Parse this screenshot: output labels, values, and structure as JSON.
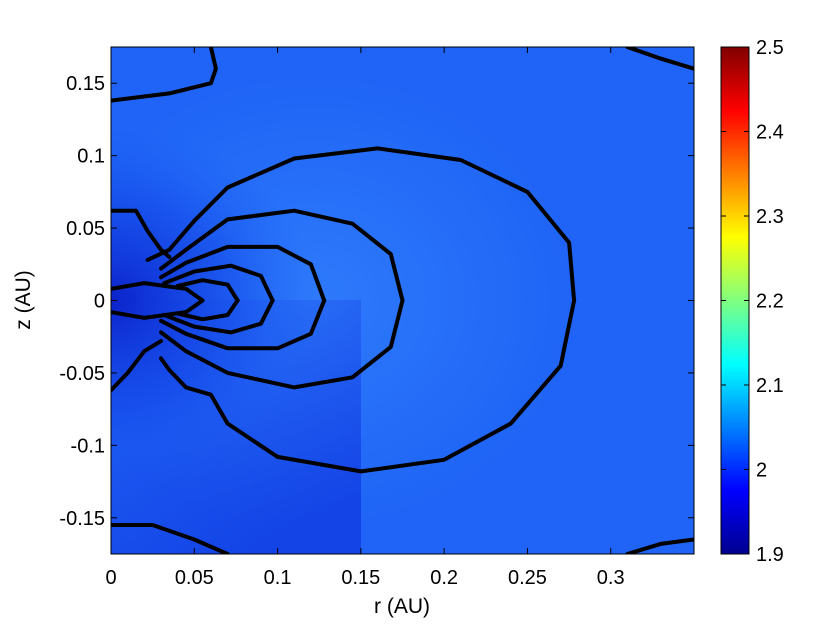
{
  "chart_data": {
    "type": "heatmap",
    "title": "",
    "xlabel": "r (AU)",
    "ylabel": "z (AU)",
    "xlim": [
      0,
      0.35
    ],
    "ylim": [
      -0.175,
      0.175
    ],
    "x_ticks": [
      {
        "value": 0,
        "label": "0"
      },
      {
        "value": 0.05,
        "label": "0.05"
      },
      {
        "value": 0.1,
        "label": "0.1"
      },
      {
        "value": 0.15,
        "label": "0.15"
      },
      {
        "value": 0.2,
        "label": "0.2"
      },
      {
        "value": 0.25,
        "label": "0.25"
      },
      {
        "value": 0.3,
        "label": "0.3"
      }
    ],
    "y_ticks": [
      {
        "value": 0.15,
        "label": "0.15"
      },
      {
        "value": 0.1,
        "label": "0.1"
      },
      {
        "value": 0.05,
        "label": "0.05"
      },
      {
        "value": 0,
        "label": "0"
      },
      {
        "value": -0.05,
        "label": "-0.05"
      },
      {
        "value": -0.1,
        "label": "-0.1"
      },
      {
        "value": -0.15,
        "label": "-0.15"
      }
    ],
    "colorbar": {
      "colormap": "jet",
      "range": [
        1.9,
        2.5
      ],
      "ticks": [
        {
          "value": 2.5,
          "label": "2.5"
        },
        {
          "value": 2.4,
          "label": "2.4"
        },
        {
          "value": 2.3,
          "label": "2.3"
        },
        {
          "value": 2.2,
          "label": "2.2"
        },
        {
          "value": 2.1,
          "label": "2.1"
        },
        {
          "value": 2.0,
          "label": "2"
        },
        {
          "value": 1.9,
          "label": "1.9"
        }
      ]
    },
    "field_background_value": 2.0,
    "contours": [
      {
        "points": [
          [
            0.175,
            0.0
          ],
          [
            0.168,
            0.032
          ],
          [
            0.145,
            0.053
          ],
          [
            0.11,
            0.062
          ],
          [
            0.07,
            0.056
          ],
          [
            0.045,
            0.035
          ],
          [
            0.03,
            0.022
          ]
        ]
      },
      {
        "points": [
          [
            0.175,
            0.0
          ],
          [
            0.168,
            -0.032
          ],
          [
            0.145,
            -0.053
          ],
          [
            0.11,
            -0.06
          ],
          [
            0.07,
            -0.05
          ],
          [
            0.045,
            -0.035
          ],
          [
            0.03,
            -0.022
          ]
        ]
      },
      {
        "points": [
          [
            0.128,
            0.0
          ],
          [
            0.12,
            0.025
          ],
          [
            0.1,
            0.037
          ],
          [
            0.07,
            0.037
          ],
          [
            0.045,
            0.026
          ],
          [
            0.03,
            0.016
          ]
        ]
      },
      {
        "points": [
          [
            0.128,
            0.0
          ],
          [
            0.12,
            -0.023
          ],
          [
            0.1,
            -0.033
          ],
          [
            0.07,
            -0.033
          ],
          [
            0.045,
            -0.023
          ],
          [
            0.03,
            -0.014
          ]
        ]
      },
      {
        "points": [
          [
            0.097,
            0.0
          ],
          [
            0.09,
            0.017
          ],
          [
            0.072,
            0.024
          ],
          [
            0.05,
            0.02
          ],
          [
            0.032,
            0.012
          ]
        ]
      },
      {
        "points": [
          [
            0.097,
            0.0
          ],
          [
            0.09,
            -0.016
          ],
          [
            0.072,
            -0.022
          ],
          [
            0.05,
            -0.018
          ],
          [
            0.032,
            -0.01
          ]
        ]
      },
      {
        "points": [
          [
            0.076,
            0.0
          ],
          [
            0.07,
            0.011
          ],
          [
            0.055,
            0.014
          ],
          [
            0.04,
            0.01
          ]
        ]
      },
      {
        "points": [
          [
            0.076,
            0.0
          ],
          [
            0.07,
            -0.01
          ],
          [
            0.055,
            -0.013
          ],
          [
            0.04,
            -0.009
          ]
        ]
      },
      {
        "points": [
          [
            0.0,
            0.008
          ],
          [
            0.02,
            0.012
          ],
          [
            0.045,
            0.008
          ],
          [
            0.055,
            0.0
          ],
          [
            0.045,
            -0.008
          ],
          [
            0.02,
            -0.012
          ],
          [
            0.0,
            -0.008
          ]
        ]
      },
      {
        "points": [
          [
            0.278,
            0.0
          ],
          [
            0.275,
            0.04
          ],
          [
            0.25,
            0.075
          ],
          [
            0.21,
            0.097
          ],
          [
            0.16,
            0.105
          ],
          [
            0.11,
            0.098
          ],
          [
            0.07,
            0.078
          ],
          [
            0.05,
            0.055
          ],
          [
            0.035,
            0.035
          ],
          [
            0.022,
            0.028
          ]
        ]
      },
      {
        "points": [
          [
            0.278,
            0.0
          ],
          [
            0.27,
            -0.045
          ],
          [
            0.24,
            -0.085
          ],
          [
            0.2,
            -0.11
          ],
          [
            0.15,
            -0.118
          ],
          [
            0.1,
            -0.108
          ],
          [
            0.07,
            -0.085
          ],
          [
            0.06,
            -0.065
          ],
          [
            0.045,
            -0.06
          ],
          [
            0.035,
            -0.048
          ],
          [
            0.03,
            -0.04
          ]
        ]
      },
      {
        "points": [
          [
            0.0,
            0.062
          ],
          [
            0.015,
            0.062
          ],
          [
            0.022,
            0.048
          ],
          [
            0.03,
            0.035
          ],
          [
            0.035,
            0.03
          ]
        ]
      },
      {
        "points": [
          [
            0.0,
            -0.062
          ],
          [
            0.01,
            -0.05
          ],
          [
            0.02,
            -0.035
          ],
          [
            0.03,
            -0.028
          ]
        ]
      },
      {
        "points": [
          [
            0.0,
            0.138
          ],
          [
            0.035,
            0.143
          ],
          [
            0.06,
            0.15
          ],
          [
            0.063,
            0.16
          ],
          [
            0.06,
            0.175
          ]
        ]
      },
      {
        "points": [
          [
            0.31,
            0.175
          ],
          [
            0.33,
            0.167
          ],
          [
            0.35,
            0.16
          ]
        ]
      },
      {
        "points": [
          [
            0.0,
            -0.155
          ],
          [
            0.025,
            -0.155
          ],
          [
            0.05,
            -0.165
          ],
          [
            0.07,
            -0.175
          ]
        ]
      },
      {
        "points": [
          [
            0.31,
            -0.175
          ],
          [
            0.33,
            -0.168
          ],
          [
            0.35,
            -0.165
          ]
        ]
      }
    ]
  }
}
